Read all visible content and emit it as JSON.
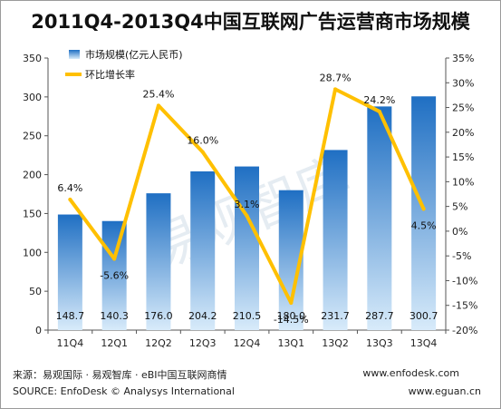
{
  "title": "2011Q4-2013Q4中国互联网广告运营商市场规模",
  "footer": {
    "source_cn": "来源：易观国际 · 易观智库 · eBI中国互联网商情",
    "source_en": "SOURCE: EnfoDesk © Analysys International",
    "url1": "www.enfodesk.com",
    "url2": "www.eguan.cn"
  },
  "watermark": "易观智库",
  "colors": {
    "bar_top": "#1f6fc3",
    "bar_bottom": "#d8ebfa",
    "line": "#ffc000",
    "axis": "#555555"
  },
  "chart_data": {
    "type": "bar",
    "categories": [
      "11Q4",
      "12Q1",
      "12Q2",
      "12Q3",
      "12Q4",
      "13Q1",
      "13Q2",
      "13Q3",
      "13Q4"
    ],
    "series": [
      {
        "name": "市场规模(亿元人民币)",
        "type": "bar",
        "axis": "left",
        "values": [
          148.7,
          140.3,
          176.0,
          204.2,
          210.5,
          180.0,
          231.7,
          287.7,
          300.7
        ],
        "labels": [
          "148.7",
          "140.3",
          "176.0",
          "204.2",
          "210.5",
          "180.0",
          "231.7",
          "287.7",
          "300.7"
        ]
      },
      {
        "name": "环比增长率",
        "type": "line",
        "axis": "right",
        "values": [
          6.4,
          -5.6,
          25.4,
          16.0,
          3.1,
          -14.5,
          28.7,
          24.2,
          4.5
        ],
        "labels": [
          "6.4%",
          "-5.6%",
          "25.4%",
          "16.0%",
          "3.1%",
          "-14.5%",
          "28.7%",
          "24.2%",
          "4.5%"
        ]
      }
    ],
    "y_left": {
      "range": [
        0,
        350
      ],
      "ticks": [
        0,
        50,
        100,
        150,
        200,
        250,
        300,
        350
      ],
      "tick_labels": [
        "0",
        "50",
        "100",
        "150",
        "200",
        "250",
        "300",
        "350"
      ]
    },
    "y_right": {
      "range": [
        -20,
        35
      ],
      "ticks": [
        -20,
        -15,
        -10,
        -5,
        0,
        5,
        10,
        15,
        20,
        25,
        30,
        35
      ],
      "tick_labels": [
        "-20%",
        "-15%",
        "-10%",
        "-5%",
        "0%",
        "5%",
        "10%",
        "15%",
        "20%",
        "25%",
        "30%",
        "35%"
      ]
    },
    "legend_position": "top-left",
    "grid": false
  }
}
